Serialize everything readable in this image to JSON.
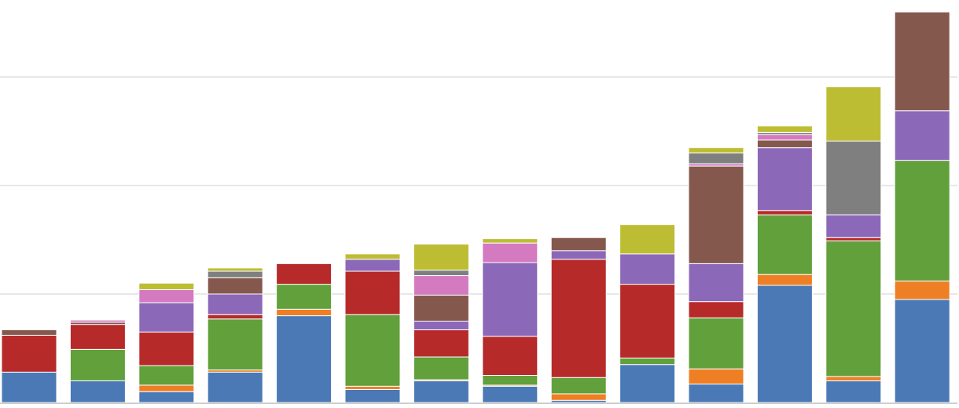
{
  "chart_data": {
    "type": "bar",
    "stacked": true,
    "title": "",
    "xlabel": "",
    "ylabel": "",
    "grid": true,
    "ylim": [
      0,
      3.6
    ],
    "gridlines": [
      1,
      2,
      3
    ],
    "categories": [
      "",
      "",
      "",
      "",
      "",
      "",
      "",
      "",
      "",
      "",
      "",
      "",
      "",
      ""
    ],
    "series": [
      {
        "color": "#4a79b6",
        "values": [
          0.28,
          0.2,
          0.1,
          0.28,
          0.8,
          0.12,
          0.2,
          0.15,
          0.02,
          0.35,
          0.17,
          1.08,
          0.2,
          0.95
        ]
      },
      {
        "color": "#ee7f24",
        "values": [
          0.0,
          0.0,
          0.06,
          0.02,
          0.06,
          0.03,
          0.01,
          0.01,
          0.06,
          0.0,
          0.14,
          0.1,
          0.04,
          0.17
        ]
      },
      {
        "color": "#61a03a",
        "values": [
          0.0,
          0.29,
          0.18,
          0.47,
          0.23,
          0.66,
          0.21,
          0.09,
          0.15,
          0.06,
          0.47,
          0.55,
          1.25,
          1.11
        ]
      },
      {
        "color": "#b72a2a",
        "values": [
          0.34,
          0.23,
          0.31,
          0.04,
          0.19,
          0.4,
          0.25,
          0.36,
          1.09,
          0.68,
          0.15,
          0.04,
          0.03,
          0.0
        ]
      },
      {
        "color": "#8c68b8",
        "values": [
          0.0,
          0.0,
          0.27,
          0.19,
          0.0,
          0.11,
          0.08,
          0.68,
          0.08,
          0.28,
          0.35,
          0.58,
          0.21,
          0.46
        ]
      },
      {
        "color": "#85584e",
        "values": [
          0.05,
          0.02,
          0.0,
          0.15,
          0.0,
          0.0,
          0.24,
          0.0,
          0.12,
          0.0,
          0.9,
          0.07,
          0.0,
          0.91
        ]
      },
      {
        "color": "#d47ac1",
        "values": [
          0.0,
          0.02,
          0.12,
          0.0,
          0.0,
          0.0,
          0.18,
          0.18,
          0.0,
          0.0,
          0.02,
          0.05,
          0.0,
          0.0
        ]
      },
      {
        "color": "#7f7f7f",
        "values": [
          0.0,
          0.0,
          0.0,
          0.06,
          0.0,
          0.0,
          0.05,
          0.0,
          0.0,
          0.0,
          0.1,
          0.02,
          0.68,
          0.0
        ]
      },
      {
        "color": "#bdbd33",
        "values": [
          0.0,
          0.0,
          0.06,
          0.03,
          0.0,
          0.05,
          0.24,
          0.04,
          0.0,
          0.27,
          0.05,
          0.06,
          0.5,
          0.0
        ]
      }
    ]
  }
}
